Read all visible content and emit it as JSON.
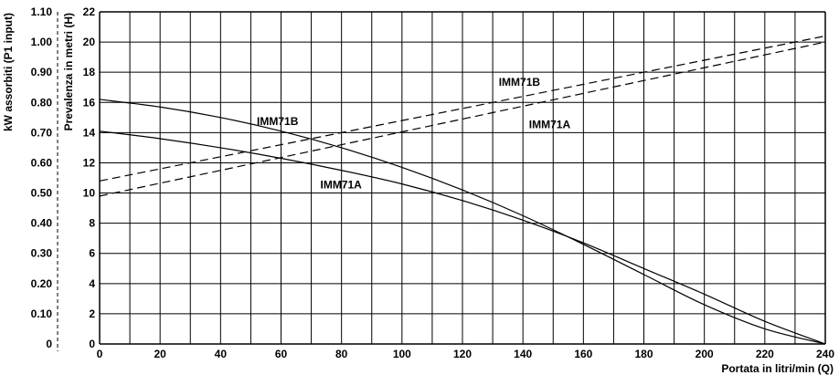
{
  "chart_data": {
    "type": "line",
    "xlabel": "Portata in litri/min (Q)",
    "ylabel": "Prevalenza in metri (H)",
    "y2label": "kW assorbiti (P1 input)",
    "xlim": [
      0,
      240
    ],
    "ylim": [
      0,
      22
    ],
    "y2lim": [
      0,
      1.1
    ],
    "grid": true,
    "x_ticks": [
      "0",
      "20",
      "40",
      "60",
      "80",
      "100",
      "120",
      "140",
      "160",
      "180",
      "200",
      "220",
      "240"
    ],
    "y_ticks": [
      "0",
      "2",
      "4",
      "6",
      "8",
      "10",
      "12",
      "14",
      "16",
      "18",
      "20",
      "22"
    ],
    "y2_ticks": [
      "0",
      "0.10",
      "0.20",
      "0.30",
      "0.40",
      "0.50",
      "0.60",
      "0.70",
      "0.80",
      "0.90",
      "1.00",
      "1.10"
    ],
    "series": [
      {
        "name": "IMM71B",
        "style": "solid",
        "axis": "H",
        "x": [
          0,
          20,
          40,
          60,
          80,
          100,
          120,
          140,
          160,
          180,
          200,
          220,
          240
        ],
        "y": [
          16.2,
          15.7,
          15.0,
          14.1,
          13.0,
          11.7,
          10.2,
          8.5,
          6.6,
          4.6,
          2.6,
          1.0,
          0.0
        ]
      },
      {
        "name": "IMM71A",
        "style": "solid",
        "axis": "H",
        "x": [
          0,
          20,
          40,
          60,
          80,
          100,
          120,
          140,
          160,
          180,
          200,
          220,
          240
        ],
        "y": [
          14.1,
          13.6,
          13.0,
          12.3,
          11.5,
          10.6,
          9.5,
          8.2,
          6.7,
          5.0,
          3.3,
          1.5,
          0.0
        ]
      },
      {
        "name": "IMM71B",
        "style": "dashed",
        "axis": "kW",
        "x": [
          0,
          240
        ],
        "y": [
          0.54,
          1.02
        ]
      },
      {
        "name": "IMM71A",
        "style": "dashed",
        "axis": "kW",
        "x": [
          0,
          240
        ],
        "y": [
          0.49,
          1.0
        ]
      }
    ],
    "annotations": [
      {
        "text": "IMM71B",
        "x": 52,
        "y": 14.5
      },
      {
        "text": "IMM71A",
        "x": 73,
        "y": 10.3
      },
      {
        "text": "IMM71B",
        "x": 132,
        "y": 17.1
      },
      {
        "text": "IMM71A",
        "x": 142,
        "y": 14.3
      }
    ]
  }
}
